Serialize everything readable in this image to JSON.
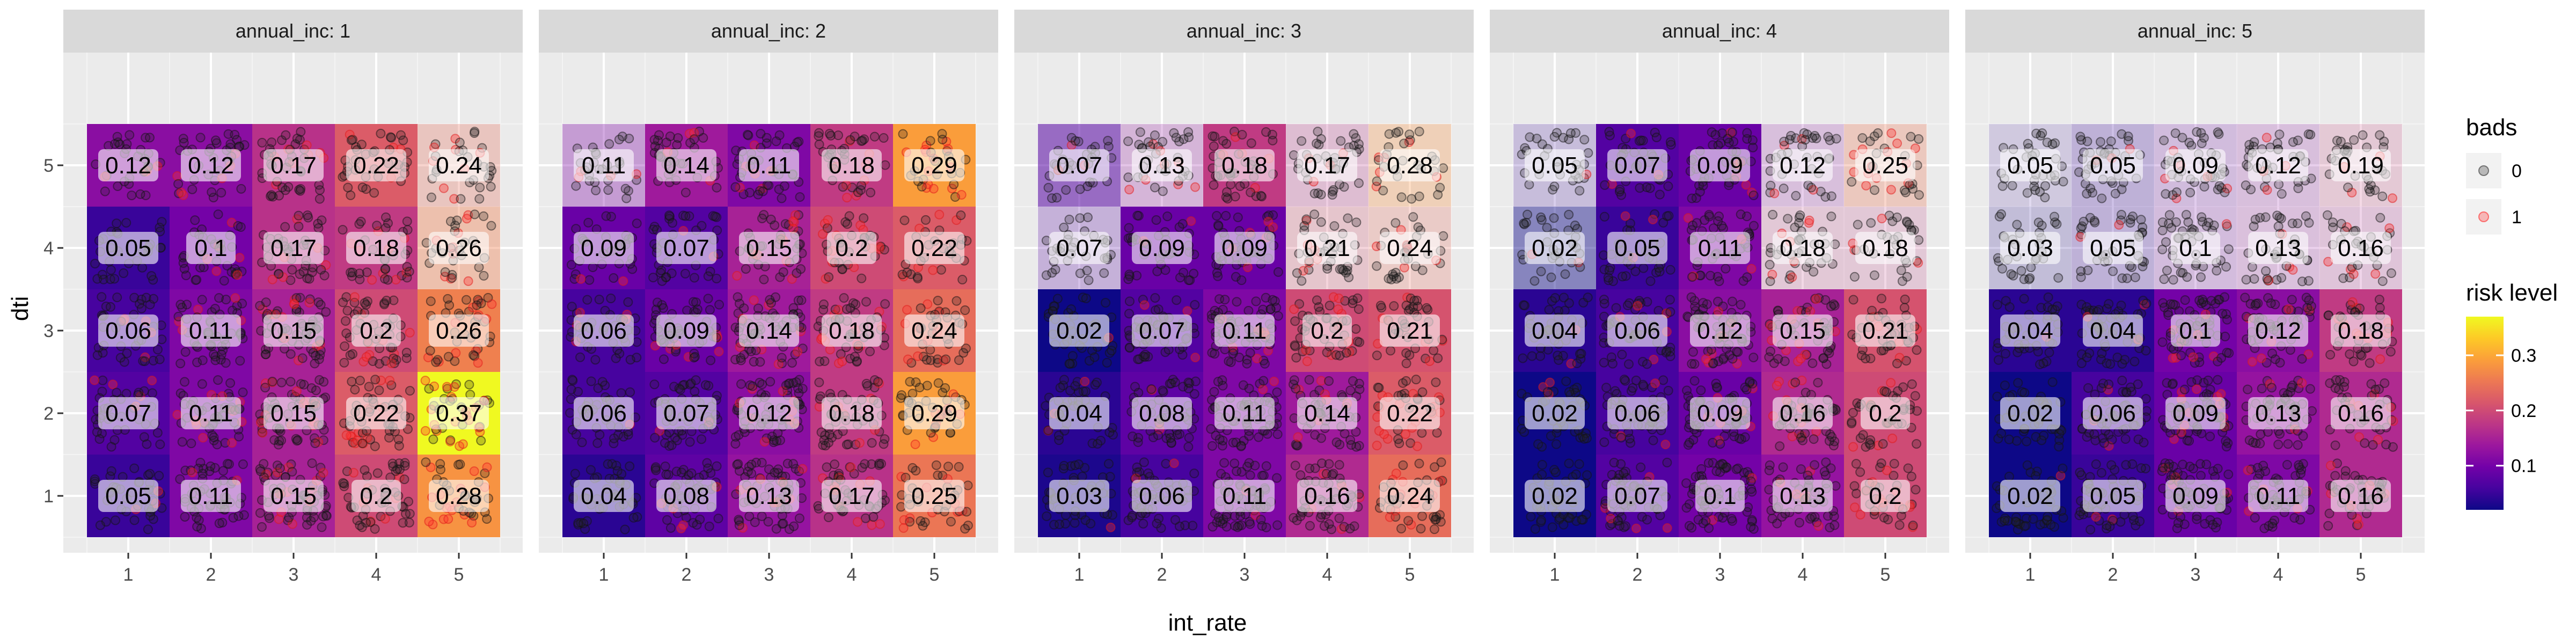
{
  "chart_data": {
    "type": "heatmap",
    "facet_label": "annual_inc",
    "facets": [
      {
        "name": "annual_inc: 1",
        "values": [
          [
            0.05,
            0.11,
            0.15,
            0.2,
            0.28
          ],
          [
            0.07,
            0.11,
            0.15,
            0.22,
            0.37
          ],
          [
            0.06,
            0.11,
            0.15,
            0.2,
            0.26
          ],
          [
            0.05,
            0.1,
            0.17,
            0.18,
            0.26
          ],
          [
            0.12,
            0.12,
            0.17,
            0.22,
            0.24
          ]
        ],
        "alpha": [
          [
            1,
            1,
            1,
            1,
            1
          ],
          [
            1,
            1,
            1,
            1,
            1
          ],
          [
            1,
            1,
            1,
            1,
            1
          ],
          [
            1,
            1,
            1,
            1,
            0.4
          ],
          [
            1,
            1,
            1,
            1,
            0.3
          ]
        ]
      },
      {
        "name": "annual_inc: 2",
        "values": [
          [
            0.04,
            0.08,
            0.13,
            0.17,
            0.25
          ],
          [
            0.06,
            0.07,
            0.12,
            0.18,
            0.29
          ],
          [
            0.06,
            0.09,
            0.14,
            0.18,
            0.24
          ],
          [
            0.09,
            0.07,
            0.15,
            0.2,
            0.22
          ],
          [
            0.11,
            0.14,
            0.11,
            0.18,
            0.29
          ]
        ],
        "alpha": [
          [
            1,
            1,
            1,
            1,
            1
          ],
          [
            1,
            1,
            1,
            1,
            1
          ],
          [
            1,
            1,
            1,
            1,
            1
          ],
          [
            1,
            1,
            1,
            1,
            1
          ],
          [
            0.35,
            1,
            1,
            1,
            1
          ]
        ]
      },
      {
        "name": "annual_inc: 3",
        "values": [
          [
            0.03,
            0.06,
            0.11,
            0.16,
            0.24
          ],
          [
            0.04,
            0.08,
            0.11,
            0.14,
            0.22
          ],
          [
            0.02,
            0.07,
            0.11,
            0.2,
            0.21
          ],
          [
            0.07,
            0.09,
            0.09,
            0.21,
            0.24
          ],
          [
            0.07,
            0.13,
            0.18,
            0.17,
            0.28
          ]
        ],
        "alpha": [
          [
            1,
            1,
            1,
            1,
            1
          ],
          [
            1,
            1,
            1,
            1,
            1
          ],
          [
            1,
            1,
            1,
            1,
            1
          ],
          [
            0.25,
            1,
            1,
            0.25,
            0.25
          ],
          [
            0.55,
            0.25,
            1,
            0.25,
            0.3
          ]
        ]
      },
      {
        "name": "annual_inc: 4",
        "values": [
          [
            0.02,
            0.07,
            0.1,
            0.13,
            0.2
          ],
          [
            0.02,
            0.06,
            0.09,
            0.16,
            0.2
          ],
          [
            0.04,
            0.06,
            0.12,
            0.15,
            0.21
          ],
          [
            0.02,
            0.05,
            0.11,
            0.18,
            0.18
          ],
          [
            0.05,
            0.07,
            0.09,
            0.12,
            0.25
          ]
        ],
        "alpha": [
          [
            1,
            1,
            1,
            1,
            1
          ],
          [
            1,
            1,
            1,
            1,
            1
          ],
          [
            1,
            1,
            1,
            1,
            1
          ],
          [
            0.45,
            1,
            1,
            0.2,
            0.2
          ],
          [
            0.2,
            1,
            1,
            0.2,
            0.3
          ]
        ]
      },
      {
        "name": "annual_inc: 5",
        "values": [
          [
            0.02,
            0.05,
            0.09,
            0.11,
            0.16
          ],
          [
            0.02,
            0.06,
            0.09,
            0.13,
            0.16
          ],
          [
            0.04,
            0.04,
            0.1,
            0.12,
            0.18
          ],
          [
            0.03,
            0.05,
            0.1,
            0.13,
            0.16
          ],
          [
            0.05,
            0.05,
            0.09,
            0.12,
            0.19
          ]
        ],
        "alpha": [
          [
            1,
            1,
            1,
            1,
            1
          ],
          [
            1,
            1,
            1,
            1,
            1
          ],
          [
            1,
            1,
            1,
            1,
            1
          ],
          [
            0.2,
            0.25,
            0.2,
            0.2,
            0.2
          ],
          [
            0.15,
            0.25,
            0.2,
            0.2,
            0.2
          ]
        ]
      }
    ],
    "x_categories": [
      1,
      2,
      3,
      4,
      5
    ],
    "y_categories": [
      1,
      2,
      3,
      4,
      5
    ],
    "xlabel": "int_rate",
    "ylabel": "dti",
    "color_scale": {
      "name": "plasma",
      "range": [
        0.02,
        0.37
      ],
      "ticks": [
        0.1,
        0.2,
        0.3
      ],
      "colors": [
        "#0d0887",
        "#46039f",
        "#7201a8",
        "#9c179e",
        "#bd3786",
        "#d8576b",
        "#ed7953",
        "#fb9f3a",
        "#fdca26",
        "#f0f921"
      ]
    },
    "legends": [
      {
        "title": "bads",
        "entries": [
          {
            "label": "0",
            "color": "#333333"
          },
          {
            "label": "1",
            "color": "#ff2a2a"
          }
        ]
      },
      {
        "title": "risk level",
        "tick_labels": [
          "0.3",
          "0.2",
          "0.1"
        ]
      }
    ],
    "grid": true,
    "legend_position": "right"
  }
}
